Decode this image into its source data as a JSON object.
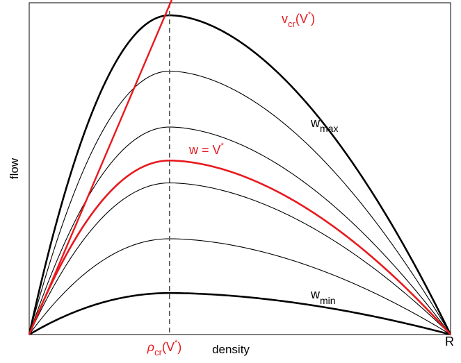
{
  "chart_data": {
    "type": "line",
    "xlabel": "density",
    "ylabel": "flow",
    "xlim": [
      0,
      1
    ],
    "ylim": [
      0,
      1
    ],
    "grid": false,
    "x_end_label": "R",
    "critical_density": 0.333,
    "x_tick_label": {
      "base": "ρ",
      "sub": "cr",
      "paren_open": "(V",
      "sup": "*",
      "paren_close": ")"
    },
    "black_curve_peaks": [
      1.0,
      0.825,
      0.65,
      0.475,
      0.3,
      0.13
    ],
    "red_curve_peak": 0.545,
    "vcr_line": {
      "slope": 3.1,
      "y_at_critical": 0.545,
      "x_end": 0.61
    },
    "labels": {
      "w_max": {
        "base": "w",
        "sub": "max"
      },
      "w_min": {
        "base": "w",
        "sub": "min"
      },
      "w_v": {
        "base": "w = V",
        "sup": "*"
      },
      "vcr": {
        "base": "v",
        "sub": "cr",
        "paren_open": "(V",
        "sup": "*",
        "paren_close": ")"
      }
    },
    "colors": {
      "black": "#000000",
      "red": "#e8191e",
      "dashed": "#555555"
    }
  }
}
